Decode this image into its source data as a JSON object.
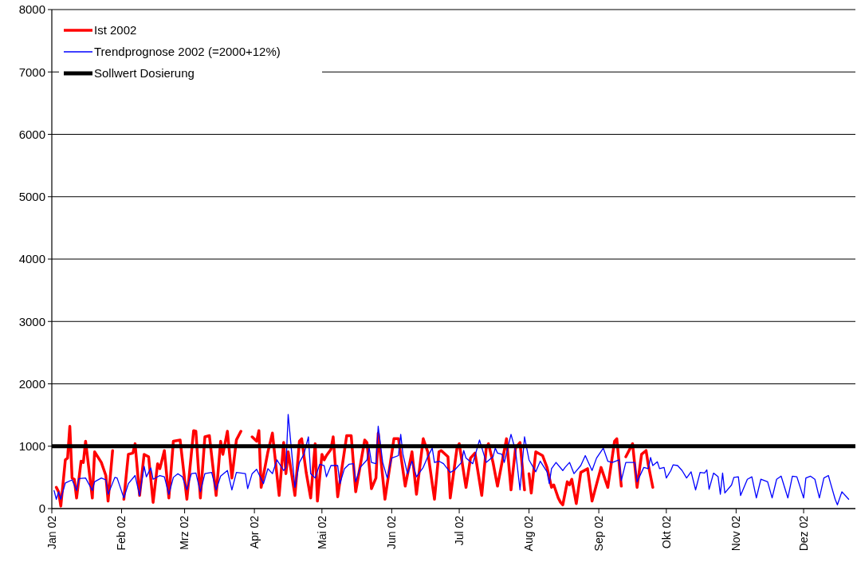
{
  "chart_data": {
    "type": "line",
    "ylim": [
      0,
      8000
    ],
    "yticks": [
      0,
      1000,
      2000,
      3000,
      4000,
      5000,
      6000,
      7000,
      8000
    ],
    "xlim": [
      "2002-01-01",
      "2002-12-24"
    ],
    "xticks": [
      {
        "value": "2002-01-01",
        "label": "Jan 02"
      },
      {
        "value": "2002-02-01",
        "label": "Feb 02"
      },
      {
        "value": "2002-03-01",
        "label": "Mrz 02"
      },
      {
        "value": "2002-04-01",
        "label": "Apr 02"
      },
      {
        "value": "2002-05-01",
        "label": "Mai 02"
      },
      {
        "value": "2002-06-01",
        "label": "Jun 02"
      },
      {
        "value": "2002-07-01",
        "label": "Jul 02"
      },
      {
        "value": "2002-08-01",
        "label": "Aug 02"
      },
      {
        "value": "2002-09-01",
        "label": "Sep 02"
      },
      {
        "value": "2002-10-01",
        "label": "Okt 02"
      },
      {
        "value": "2002-11-01",
        "label": "Nov 02"
      },
      {
        "value": "2002-12-01",
        "label": "Dez 02"
      }
    ],
    "grid": "y",
    "legend": "top left",
    "marker": "none",
    "series": [
      {
        "name": "Ist 2002",
        "color": "#ff0000",
        "x": [
          "2002-01-03",
          "2002-01-04",
          "2002-01-05",
          "2002-01-07",
          "2002-01-08",
          "2002-01-09",
          "2002-01-10",
          "2002-01-11",
          "2002-01-12",
          "2002-01-14",
          "2002-01-15",
          "2002-01-16",
          "2002-01-17",
          "2002-01-19",
          "2002-01-20",
          "2002-01-23",
          "2002-01-25",
          "2002-01-26",
          "2002-01-28",
          "2002-01-31",
          "2002-02-02",
          "2002-02-04",
          "2002-02-06",
          "2002-02-07",
          "2002-02-09",
          "2002-02-11",
          "2002-02-13",
          "2002-02-15",
          "2002-02-17",
          "2002-02-18",
          "2002-02-20",
          "2002-02-22",
          "2002-02-24",
          "2002-02-27",
          "2002-03-02",
          "2002-03-05",
          "2002-03-06",
          "2002-03-08",
          "2002-03-10",
          "2002-03-12",
          "2002-03-15",
          "2002-03-17",
          "2002-03-18",
          "2002-03-20",
          "2002-03-22",
          "2002-03-24",
          "2002-03-26",
          "2002-03-28",
          "2002-03-31",
          "2002-04-02",
          "2002-04-03",
          "2002-04-04",
          "2002-04-07",
          "2002-04-09",
          "2002-04-12",
          "2002-04-14",
          "2002-04-15",
          "2002-04-16",
          "2002-04-19",
          "2002-04-21",
          "2002-04-22",
          "2002-04-24",
          "2002-04-26",
          "2002-04-28",
          "2002-04-29",
          "2002-05-01",
          "2002-05-02",
          "2002-05-03",
          "2002-05-05",
          "2002-05-06",
          "2002-05-08",
          "2002-05-12",
          "2002-05-14",
          "2002-05-16",
          "2002-05-20",
          "2002-05-21",
          "2002-05-23",
          "2002-05-25",
          "2002-05-26",
          "2002-05-29",
          "2002-06-02",
          "2002-06-04",
          "2002-06-07",
          "2002-06-10",
          "2002-06-12",
          "2002-06-15",
          "2002-06-17",
          "2002-06-20",
          "2002-06-22",
          "2002-06-23",
          "2002-06-26",
          "2002-06-27",
          "2002-06-30",
          "2002-07-01",
          "2002-07-04",
          "2002-07-06",
          "2002-07-08",
          "2002-07-11",
          "2002-07-13",
          "2002-07-14",
          "2002-07-16",
          "2002-07-18",
          "2002-07-20",
          "2002-07-22",
          "2002-07-24",
          "2002-07-26",
          "2002-07-28",
          "2002-07-30",
          "2002-07-31",
          "2002-08-01",
          "2002-08-02",
          "2002-08-04",
          "2002-08-07",
          "2002-08-09",
          "2002-08-11",
          "2002-08-12",
          "2002-08-14",
          "2002-08-15",
          "2002-08-16",
          "2002-08-18",
          "2002-08-19",
          "2002-08-20",
          "2002-08-22",
          "2002-08-24",
          "2002-08-27",
          "2002-08-29",
          "2002-09-02",
          "2002-09-05",
          "2002-09-08",
          "2002-09-09",
          "2002-09-11",
          "2002-09-12",
          "2002-09-13",
          "2002-09-16",
          "2002-09-18",
          "2002-09-20",
          "2002-09-22",
          "2002-09-23",
          "2002-09-25"
        ],
        "values": [
          340,
          270,
          40,
          780,
          810,
          1320,
          490,
          470,
          170,
          760,
          740,
          1080,
          780,
          170,
          910,
          740,
          530,
          120,
          930,
          null,
          150,
          870,
          890,
          1040,
          210,
          870,
          830,
          100,
          720,
          640,
          930,
          170,
          1080,
          1100,
          150,
          1250,
          1240,
          170,
          1150,
          1170,
          210,
          1080,
          870,
          1240,
          490,
          1100,
          1240,
          null,
          1150,
          1080,
          1250,
          340,
          910,
          1210,
          210,
          1060,
          560,
          910,
          210,
          1080,
          1120,
          580,
          170,
          1040,
          120,
          870,
          780,
          850,
          950,
          1150,
          190,
          1170,
          1170,
          270,
          1100,
          1060,
          320,
          490,
          1210,
          150,
          1120,
          1120,
          360,
          910,
          230,
          1120,
          910,
          150,
          910,
          930,
          830,
          170,
          970,
          1040,
          340,
          810,
          890,
          210,
          970,
          1040,
          740,
          360,
          740,
          1120,
          300,
          970,
          1060,
          300,
          null,
          560,
          250,
          910,
          850,
          660,
          340,
          380,
          170,
          100,
          60,
          430,
          380,
          470,
          80,
          580,
          640,
          120,
          660,
          340,
          1080,
          1120,
          360,
          null,
          830,
          1040,
          340,
          870,
          930,
          700,
          340
        ]
      },
      {
        "name": "Trendprognose 2002 (=2000+12%)",
        "color": "#0000ff",
        "x": [
          "2002-01-02",
          "2002-01-03",
          "2002-01-04",
          "2002-01-05",
          "2002-01-07",
          "2002-01-10",
          "2002-01-12",
          "2002-01-13",
          "2002-01-16",
          "2002-01-19",
          "2002-01-20",
          "2002-01-23",
          "2002-01-25",
          "2002-01-26",
          "2002-01-29",
          "2002-01-30",
          "2002-02-02",
          "2002-02-04",
          "2002-02-07",
          "2002-02-09",
          "2002-02-11",
          "2002-02-12",
          "2002-02-14",
          "2002-02-15",
          "2002-02-18",
          "2002-02-20",
          "2002-02-22",
          "2002-02-24",
          "2002-02-26",
          "2002-02-28",
          "2002-03-02",
          "2002-03-04",
          "2002-03-06",
          "2002-03-08",
          "2002-03-10",
          "2002-03-13",
          "2002-03-15",
          "2002-03-17",
          "2002-03-20",
          "2002-03-22",
          "2002-03-24",
          "2002-03-28",
          "2002-03-29",
          "2002-03-31",
          "2002-04-02",
          "2002-04-05",
          "2002-04-07",
          "2002-04-09",
          "2002-04-11",
          "2002-04-14",
          "2002-04-15",
          "2002-04-16",
          "2002-04-19",
          "2002-04-21",
          "2002-04-23",
          "2002-04-25",
          "2002-04-26",
          "2002-04-28",
          "2002-04-30",
          "2002-05-02",
          "2002-05-03",
          "2002-05-05",
          "2002-05-08",
          "2002-05-09",
          "2002-05-11",
          "2002-05-13",
          "2002-05-15",
          "2002-05-16",
          "2002-05-18",
          "2002-05-21",
          "2002-05-22",
          "2002-05-23",
          "2002-05-25",
          "2002-05-26",
          "2002-05-28",
          "2002-05-30",
          "2002-06-01",
          "2002-06-04",
          "2002-06-05",
          "2002-06-06",
          "2002-06-08",
          "2002-06-10",
          "2002-06-12",
          "2002-06-15",
          "2002-06-17",
          "2002-06-19",
          "2002-06-20",
          "2002-06-22",
          "2002-06-24",
          "2002-06-27",
          "2002-06-29",
          "2002-07-02",
          "2002-07-03",
          "2002-07-04",
          "2002-07-07",
          "2002-07-10",
          "2002-07-13",
          "2002-07-16",
          "2002-07-17",
          "2002-07-18",
          "2002-07-20",
          "2002-07-21",
          "2002-07-24",
          "2002-07-26",
          "2002-07-28",
          "2002-07-30",
          "2002-08-01",
          "2002-08-04",
          "2002-08-06",
          "2002-08-09",
          "2002-08-10",
          "2002-08-11",
          "2002-08-13",
          "2002-08-16",
          "2002-08-17",
          "2002-08-19",
          "2002-08-21",
          "2002-08-24",
          "2002-08-26",
          "2002-08-29",
          "2002-08-31",
          "2002-09-03",
          "2002-09-05",
          "2002-09-07",
          "2002-09-10",
          "2002-09-11",
          "2002-09-13",
          "2002-09-17",
          "2002-09-18",
          "2002-09-21",
          "2002-09-23",
          "2002-09-24",
          "2002-09-25",
          "2002-09-27",
          "2002-09-28",
          "2002-09-30",
          "2002-10-01",
          "2002-10-03",
          "2002-10-04",
          "2002-10-06",
          "2002-10-08",
          "2002-10-10",
          "2002-10-12",
          "2002-10-14",
          "2002-10-16",
          "2002-10-18",
          "2002-10-19",
          "2002-10-20",
          "2002-10-22",
          "2002-10-24",
          "2002-10-25",
          "2002-10-26",
          "2002-10-27",
          "2002-10-30",
          "2002-10-31",
          "2002-11-02",
          "2002-11-03",
          "2002-11-06",
          "2002-11-08",
          "2002-11-10",
          "2002-11-12",
          "2002-11-15",
          "2002-11-17",
          "2002-11-19",
          "2002-11-21",
          "2002-11-24",
          "2002-11-26",
          "2002-11-28",
          "2002-12-01",
          "2002-12-02",
          "2002-12-04",
          "2002-12-06",
          "2002-12-08",
          "2002-12-10",
          "2002-12-12",
          "2002-12-13",
          "2002-12-15",
          "2002-12-16",
          "2002-12-18",
          "2002-12-21"
        ],
        "values": [
          290,
          150,
          270,
          150,
          410,
          460,
          290,
          480,
          490,
          290,
          430,
          490,
          460,
          230,
          500,
          490,
          170,
          400,
          530,
          210,
          680,
          510,
          650,
          470,
          530,
          510,
          230,
          500,
          560,
          510,
          300,
          560,
          570,
          270,
          560,
          580,
          300,
          520,
          610,
          300,
          580,
          560,
          320,
          560,
          630,
          400,
          640,
          560,
          780,
          610,
          660,
          1510,
          340,
          740,
          870,
          1150,
          560,
          490,
          710,
          690,
          510,
          690,
          690,
          400,
          640,
          710,
          720,
          430,
          660,
          780,
          970,
          740,
          720,
          1320,
          740,
          490,
          810,
          850,
          1190,
          870,
          560,
          760,
          510,
          660,
          830,
          970,
          740,
          760,
          720,
          580,
          620,
          740,
          930,
          810,
          720,
          1100,
          740,
          830,
          970,
          890,
          870,
          740,
          1190,
          930,
          300,
          1150,
          780,
          590,
          760,
          590,
          400,
          640,
          740,
          610,
          660,
          740,
          560,
          690,
          850,
          610,
          810,
          970,
          760,
          740,
          780,
          450,
          740,
          740,
          430,
          660,
          640,
          820,
          690,
          750,
          640,
          660,
          490,
          610,
          700,
          690,
          610,
          490,
          590,
          300,
          580,
          570,
          620,
          310,
          570,
          510,
          230,
          570,
          250,
          380,
          500,
          510,
          210,
          470,
          510,
          170,
          470,
          430,
          170,
          470,
          520,
          170,
          520,
          510,
          170,
          490,
          520,
          470,
          170,
          490,
          530,
          400,
          150,
          60,
          270,
          150
        ]
      }
    ],
    "ref_lines": [
      {
        "axis": "y",
        "value": 1000,
        "label": "Sollwert Dosierung",
        "color": "#000000"
      }
    ]
  }
}
